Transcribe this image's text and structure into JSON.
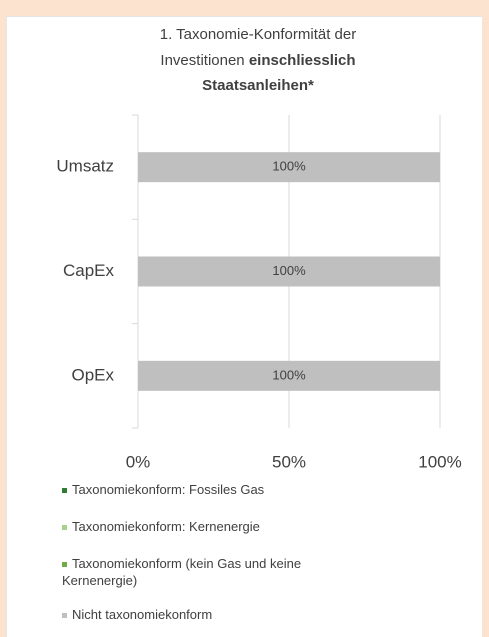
{
  "chart_data": {
    "type": "stacked_barh",
    "title": "1. Taxonomie-Konformität der Investitionen",
    "title_emphasis": "einschliesslich Staatsanleihen*",
    "categories": [
      "Umsatz",
      "CapEx",
      "OpEx"
    ],
    "series": [
      {
        "name": "Taxonomiekonform: Fossiles Gas",
        "color": "#2e7d32",
        "values": [
          0,
          0,
          0
        ]
      },
      {
        "name": "Taxonomiekonform: Kernenergie",
        "color": "#a9d18e",
        "values": [
          0,
          0,
          0
        ]
      },
      {
        "name": "Taxonomiekonform (kein Gas und keine Kernenergie)",
        "color": "#70ad47",
        "values": [
          0,
          0,
          0
        ]
      },
      {
        "name": "Nicht taxonomiekonform",
        "color": "#bfbfbf",
        "values": [
          100,
          100,
          100
        ],
        "value_labels": [
          "100%",
          "100%",
          "100%"
        ]
      }
    ],
    "xlim": [
      0,
      100
    ],
    "xticks": [
      {
        "value": 0,
        "label": "0%"
      },
      {
        "value": 50,
        "label": "50%"
      },
      {
        "value": 100,
        "label": "100%"
      }
    ],
    "grid": true
  }
}
